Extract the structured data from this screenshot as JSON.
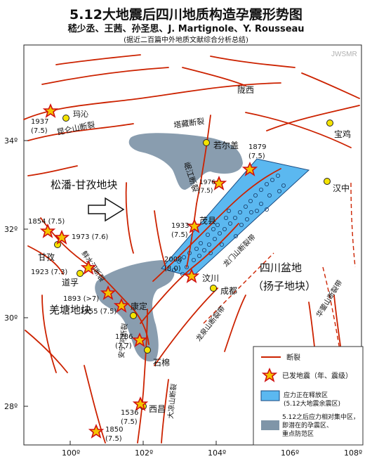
{
  "header": {
    "title": "5.12大地震后四川地质构造孕震形势图",
    "authors": "嵇少丞、王茜、孙圣思、J. Martignole、Y. Rousseau",
    "note": "(据近二百篇中外地质文献综合分析总结)"
  },
  "watermark": "JWSMR",
  "axes": {
    "x_ticks": [
      "100º",
      "102º",
      "104º",
      "106º",
      "108º"
    ],
    "y_ticks": [
      "34º",
      "32º",
      "30º",
      "28º"
    ]
  },
  "regions": {
    "songpan": "松潘-甘孜地块",
    "sichuan_basin": "四川盆地",
    "yangtze": "（扬子地块）",
    "kangdian": "羌塘地块"
  },
  "faults": {
    "kunlun": "昆仑山断裂",
    "tazang": "塔藏断裂",
    "minjiang": "岷江断裂",
    "xianshuihe": "鲜水河断裂",
    "longmenshan": "龙门山断裂带",
    "longquanshan": "龙泉山断裂带",
    "huayingshan": "华蓥山断裂带",
    "anninghe": "安宁河断裂",
    "daliangshan": "大凉山断裂"
  },
  "cities": {
    "maqin": "玛沁",
    "longxi": "陇西",
    "baoji": "宝鸡",
    "ruoergai": "若尔盖",
    "hanzhong": "汉中",
    "maoxian": "茂县",
    "wenchuan": "汶川",
    "chengdu": "成都",
    "ganzi": "甘孜",
    "daofu": "道孚",
    "kangding": "康定",
    "shimian": "石棉",
    "xichang": "西昌"
  },
  "quakes": {
    "q1937": "1937",
    "q1937m": "(7.5)",
    "q1879": "1879",
    "q1879m": "(7.5)",
    "q1976": "1976",
    "q1976m": "(7.5)",
    "q1854": "1854 (7.5)",
    "q1973": "1973 (7.6)",
    "q1933": "1933",
    "q1933m": "(7.5)",
    "q1923": "1923 (7.3)",
    "q2008": "2008",
    "q2008m": "(8.0)",
    "q1893": "1893 (>7)",
    "q1955": "1955 (7.5)",
    "q1786": "1786",
    "q1786m": "(7.7)",
    "q1536": "1536",
    "q1536m": "(7.5)",
    "q1850": "1850",
    "q1850m": "(7.5)"
  },
  "legend": {
    "fault": "断裂",
    "earthquake": "已发地震（年、震级）",
    "release_zone": "应力正在释放区",
    "release_zone_sub": "(5.12大地震余震区)",
    "stress_zone_1": "5.12之后应力相对集中区，",
    "stress_zone_2": "即潜在的孕震区、",
    "stress_zone_3": "重点防范区"
  },
  "colors": {
    "fault": "#cc2200",
    "aftershock_zone": "#5bb8f0",
    "stress_zone": "#7f95a8",
    "star_fill": "#f4c400",
    "star_stroke": "#d01010",
    "city_fill": "#f5e400"
  }
}
